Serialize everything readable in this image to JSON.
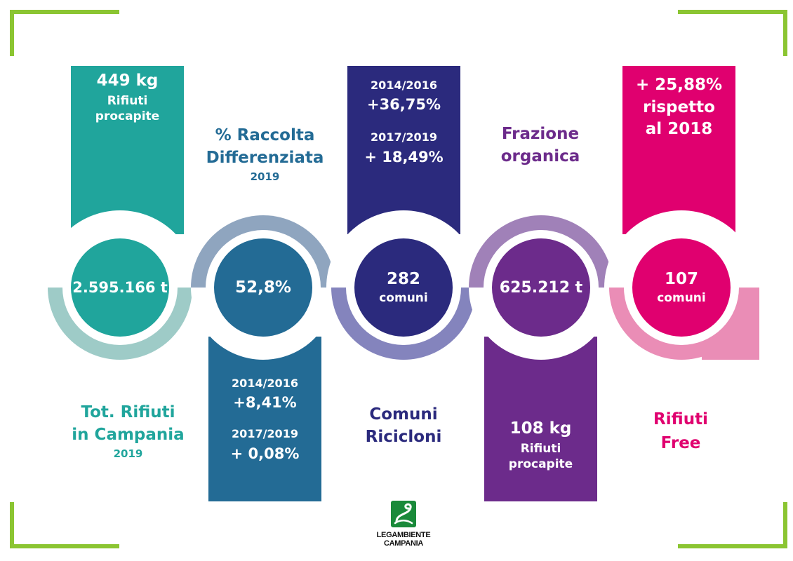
{
  "colors": {
    "teal": "#20a59c",
    "teal_light": "#9ecbc7",
    "blue": "#236b95",
    "blue_light": "#8fa5bf",
    "navy": "#2b2a7d",
    "navy_light": "#8484bd",
    "purple": "#6c2b8b",
    "purple_light": "#a081b8",
    "magenta": "#e0006f",
    "magenta_light": "#ea8db6",
    "corner_green": "#8bc532"
  },
  "col1": {
    "top_value": "449 kg",
    "top_line2": "Rifiuti",
    "top_line3": "procapite",
    "circle": "2.595.166 t",
    "label_line1": "Tot. Rifiuti",
    "label_line2": "in Campania",
    "label_year": "2019"
  },
  "col2": {
    "label_line1": "% Raccolta",
    "label_line2": "Differenziata",
    "label_year": "2019",
    "circle": "52,8%",
    "p1": "2014/2016",
    "v1": "+8,41%",
    "p2": "2017/2019",
    "v2": "+ 0,08%"
  },
  "col3": {
    "p1": "2014/2016",
    "v1": "+36,75%",
    "p2": "2017/2019",
    "v2": "+ 18,49%",
    "circle_value": "282",
    "circle_unit": "comuni",
    "label_line1": "Comuni",
    "label_line2": "Ricicloni"
  },
  "col4": {
    "label_line1": "Frazione",
    "label_line2": "organica",
    "circle": "625.212 t",
    "bot_value": "108 kg",
    "bot_line2": "Rifiuti",
    "bot_line3": "procapite"
  },
  "col5": {
    "top_line1": "+ 25,88%",
    "top_line2": "rispetto",
    "top_line3": "al 2018",
    "circle_value": "107",
    "circle_unit": "comuni",
    "label_line1": "Rifiuti",
    "label_line2": "Free"
  },
  "logo": {
    "line1": "LEGAMBIENTE",
    "line2": "CAMPANIA"
  }
}
